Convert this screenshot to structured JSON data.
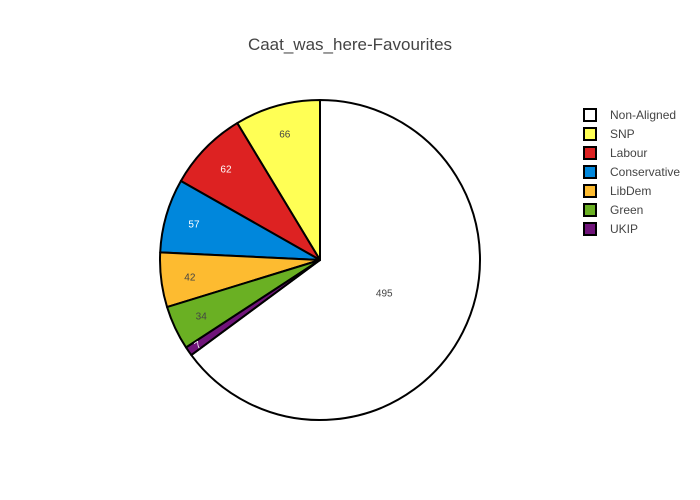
{
  "chart_data": {
    "type": "pie",
    "title": "Caat_was_here-Favourites",
    "legend_position": "right",
    "slices": [
      {
        "label": "Non-Aligned",
        "value": 495,
        "color": "#ffffff",
        "text_color": "#444444"
      },
      {
        "label": "SNP",
        "value": 66,
        "color": "#ffff55",
        "text_color": "#444444"
      },
      {
        "label": "Labour",
        "value": 62,
        "color": "#dd2222",
        "text_color": "#ffffff"
      },
      {
        "label": "Conservative",
        "value": 57,
        "color": "#0087dc",
        "text_color": "#ffffff"
      },
      {
        "label": "LibDem",
        "value": 42,
        "color": "#fdbb30",
        "text_color": "#444444"
      },
      {
        "label": "Green",
        "value": 34,
        "color": "#6ab023",
        "text_color": "#444444"
      },
      {
        "label": "UKIP",
        "value": 7,
        "color": "#70147a",
        "text_color": "#ffffff"
      }
    ]
  }
}
